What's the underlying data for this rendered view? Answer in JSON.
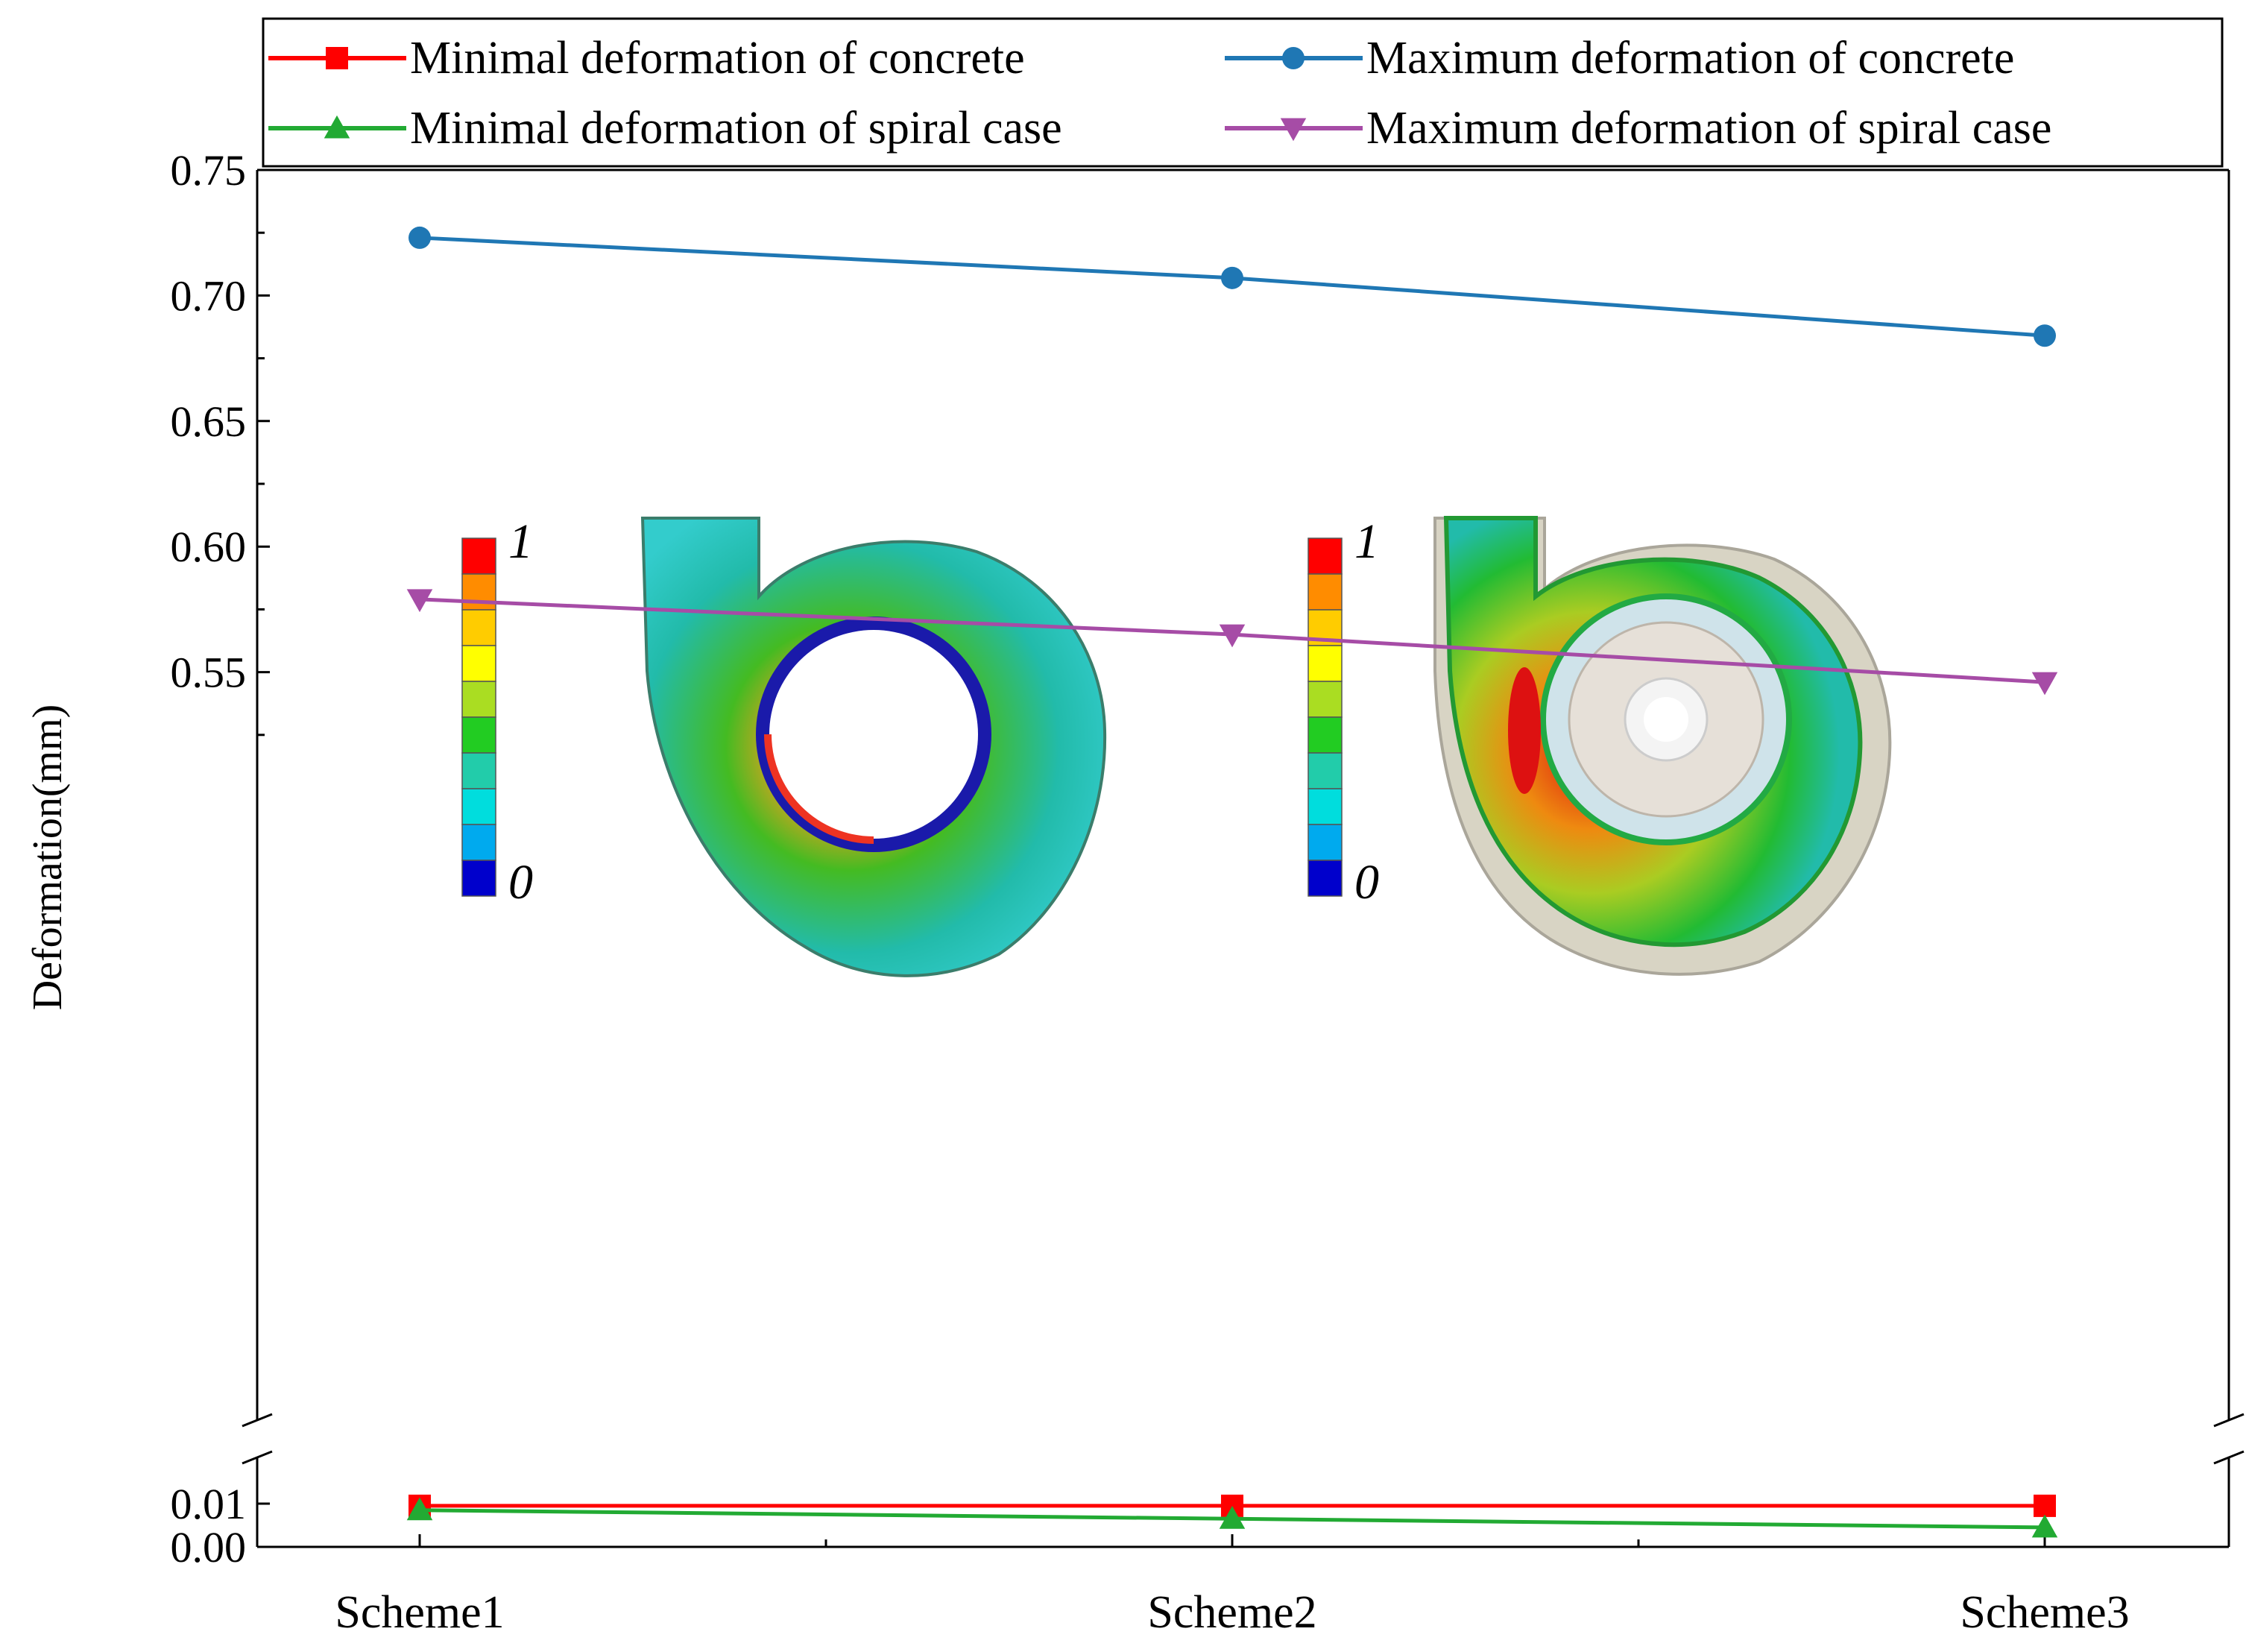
{
  "chart_data": {
    "type": "line",
    "ylabel": "Deformation(mm)",
    "categories": [
      "Scheme1",
      "Scheme2",
      "Scheme3"
    ],
    "axis_break": true,
    "ylim_upper": [
      0.5,
      0.75
    ],
    "ylim_lower": [
      0.0,
      0.015
    ],
    "yticks_upper": [
      "0.55",
      "0.60",
      "0.65",
      "0.70",
      "0.75"
    ],
    "yticks_lower": [
      "0.00",
      "0.01"
    ],
    "legend_placement": "top",
    "series": [
      {
        "name": "Minimal deformation of concrete",
        "values": [
          0.0095,
          0.0095,
          0.0095
        ],
        "color": "#ff0000",
        "marker": "square"
      },
      {
        "name": "Maximum deformation of concrete",
        "values": [
          0.723,
          0.707,
          0.684
        ],
        "color": "#1f77b4",
        "marker": "circle"
      },
      {
        "name": "Minimal deformation of spiral case",
        "values": [
          0.0085,
          0.0065,
          0.0045
        ],
        "color": "#22aa33",
        "marker": "triangle-up"
      },
      {
        "name": "Maximum deformation of spiral case",
        "values": [
          0.579,
          0.565,
          0.546
        ],
        "color": "#a64ca6",
        "marker": "triangle-down"
      }
    ],
    "insets": [
      {
        "name": "concrete-contour",
        "colorbar_max": "1",
        "colorbar_min": "0"
      },
      {
        "name": "spiral-case-contour",
        "colorbar_max": "1",
        "colorbar_min": "0"
      }
    ],
    "colorbar_colors": [
      "#ff0000",
      "#ff8c00",
      "#ffcc00",
      "#ffff00",
      "#aadd22",
      "#22cc22",
      "#22ccaa",
      "#00dddd",
      "#00aaee",
      "#0000cc"
    ]
  }
}
